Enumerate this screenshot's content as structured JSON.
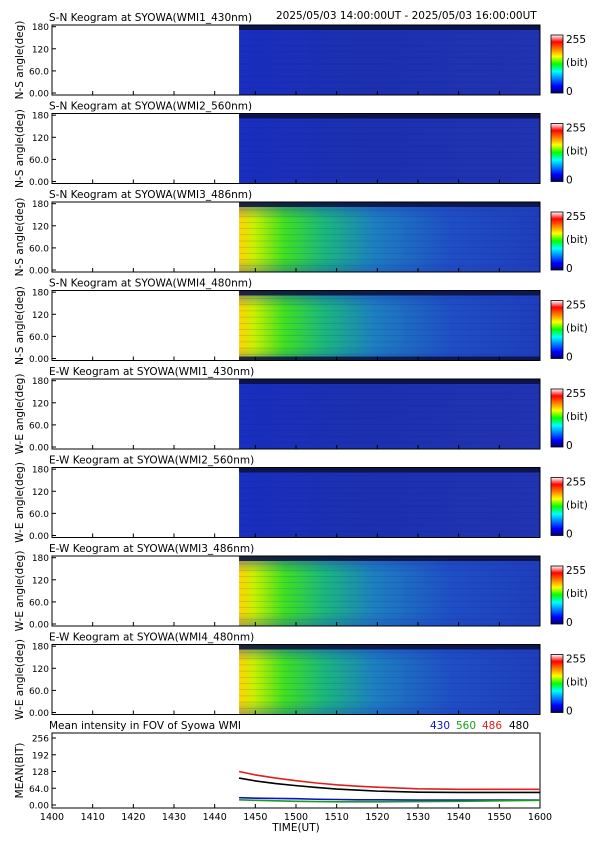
{
  "header": {
    "time_range": "2025/05/03 14:00:00UT - 2025/05/03 16:00:00UT"
  },
  "colors": {
    "bg_blue": "#1f2fa8",
    "top_band": "#0a0f3a",
    "series_430": "#1010cc",
    "series_560": "#1a9e1a",
    "series_486": "#e02020",
    "series_480": "#000000"
  },
  "chart_data": [
    {
      "type": "heatmap",
      "title": "S-N Keogram at SYOWA(WMI1_430nm)",
      "ylabel": "N-S angle(deg)",
      "yticks": [
        "180",
        "120",
        "60.0",
        "0.00"
      ],
      "colorbar": {
        "max": "255",
        "unit": "(bit)",
        "min": "0"
      },
      "intensity": "low",
      "data_start": "1446"
    },
    {
      "type": "heatmap",
      "title": "S-N Keogram at SYOWA(WMI2_560nm)",
      "ylabel": "N-S angle(deg)",
      "yticks": [
        "180",
        "120",
        "60.0",
        "0.00"
      ],
      "colorbar": {
        "max": "255",
        "unit": "(bit)",
        "min": "0"
      },
      "intensity": "low",
      "data_start": "1446"
    },
    {
      "type": "heatmap",
      "title": "S-N Keogram at SYOWA(WMI3_486nm)",
      "ylabel": "N-S angle(deg)",
      "yticks": [
        "180",
        "120",
        "60.0",
        "0.00"
      ],
      "colorbar": {
        "max": "255",
        "unit": "(bit)",
        "min": "0"
      },
      "intensity": "high",
      "data_start": "1446"
    },
    {
      "type": "heatmap",
      "title": "S-N Keogram at SYOWA(WMI4_480nm)",
      "ylabel": "N-S angle(deg)",
      "yticks": [
        "180",
        "120",
        "60.0",
        "0.00"
      ],
      "colorbar": {
        "max": "255",
        "unit": "(bit)",
        "min": "0"
      },
      "intensity": "high",
      "data_start": "1446"
    },
    {
      "type": "heatmap",
      "title": "E-W Keogram at SYOWA(WMI1_430nm)",
      "ylabel": "W-E angle(deg)",
      "yticks": [
        "180",
        "120",
        "60.0",
        "0.00"
      ],
      "colorbar": {
        "max": "255",
        "unit": "(bit)",
        "min": "0"
      },
      "intensity": "low",
      "data_start": "1446"
    },
    {
      "type": "heatmap",
      "title": "E-W Keogram at SYOWA(WMI2_560nm)",
      "ylabel": "W-E angle(deg)",
      "yticks": [
        "180",
        "120",
        "60.0",
        "0.00"
      ],
      "colorbar": {
        "max": "255",
        "unit": "(bit)",
        "min": "0"
      },
      "intensity": "low",
      "data_start": "1446"
    },
    {
      "type": "heatmap",
      "title": "E-W Keogram at SYOWA(WMI3_486nm)",
      "ylabel": "W-E angle(deg)",
      "yticks": [
        "180",
        "120",
        "60.0",
        "0.00"
      ],
      "colorbar": {
        "max": "255",
        "unit": "(bit)",
        "min": "0"
      },
      "intensity": "high",
      "data_start": "1446"
    },
    {
      "type": "heatmap",
      "title": "E-W Keogram at SYOWA(WMI4_480nm)",
      "ylabel": "W-E angle(deg)",
      "yticks": [
        "180",
        "120",
        "60.0",
        "0.00"
      ],
      "colorbar": {
        "max": "255",
        "unit": "(bit)",
        "min": "0"
      },
      "intensity": "high",
      "data_start": "1446"
    },
    {
      "type": "line",
      "title": "Mean intensity in FOV of Syowa WMI",
      "ylabel": "MEAN(BIT)",
      "xlabel": "TIME(UT)",
      "xticks": [
        "1400",
        "1410",
        "1420",
        "1430",
        "1440",
        "1450",
        "1500",
        "1510",
        "1520",
        "1530",
        "1540",
        "1550",
        "1600"
      ],
      "yticks": [
        "256",
        "192",
        "128",
        "64.0",
        "0.00"
      ],
      "xlim": [
        0,
        120
      ],
      "ylim": [
        0,
        256
      ],
      "x": [
        46,
        50,
        55,
        60,
        65,
        70,
        75,
        80,
        90,
        100,
        110,
        120
      ],
      "series": [
        {
          "name": "430",
          "color": "#1010cc",
          "values": [
            28,
            26,
            25,
            24,
            22,
            21,
            20,
            20,
            19,
            19,
            19,
            19
          ]
        },
        {
          "name": "560",
          "color": "#1a9e1a",
          "values": [
            20,
            18,
            16,
            14,
            13,
            12,
            12,
            12,
            13,
            14,
            16,
            18
          ]
        },
        {
          "name": "486",
          "color": "#e02020",
          "values": [
            128,
            115,
            103,
            93,
            84,
            77,
            72,
            68,
            62,
            60,
            60,
            60
          ]
        },
        {
          "name": "480",
          "color": "#000000",
          "values": [
            103,
            92,
            82,
            74,
            67,
            61,
            57,
            53,
            49,
            48,
            48,
            48
          ]
        }
      ]
    }
  ]
}
